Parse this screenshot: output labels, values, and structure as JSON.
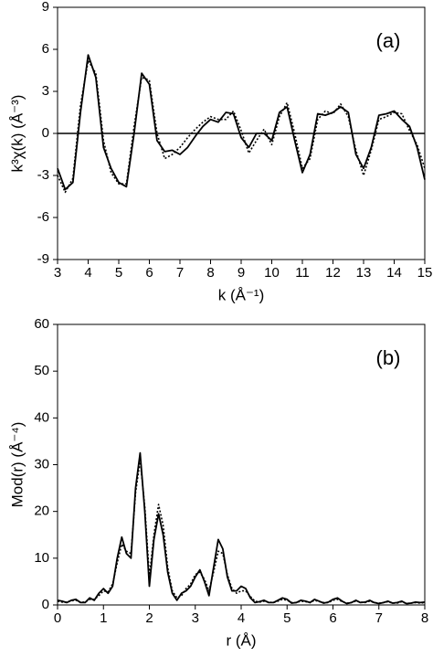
{
  "chart_data": [
    {
      "type": "line",
      "panel_label": "(a)",
      "x_label": "k (Å⁻¹)",
      "y_label": "k³χ(k) (Å⁻³)",
      "xlim": [
        3,
        15
      ],
      "xticks": [
        3,
        4,
        5,
        6,
        7,
        8,
        9,
        10,
        11,
        12,
        13,
        14,
        15
      ],
      "ylim": [
        -9,
        9
      ],
      "yticks": [
        -9,
        -6,
        -3,
        0,
        3,
        6,
        9
      ],
      "hlines": [
        0
      ],
      "x": [
        3,
        3.25,
        3.5,
        3.75,
        4,
        4.25,
        4.5,
        4.75,
        5,
        5.25,
        5.5,
        5.75,
        6,
        6.25,
        6.5,
        6.75,
        7,
        7.25,
        7.5,
        7.75,
        8,
        8.25,
        8.5,
        8.75,
        9,
        9.25,
        9.5,
        9.75,
        10,
        10.25,
        10.5,
        10.75,
        11,
        11.25,
        11.5,
        11.75,
        12,
        12.25,
        12.5,
        12.75,
        13,
        13.25,
        13.5,
        13.75,
        14,
        14.25,
        14.5,
        14.75,
        15
      ],
      "series": [
        {
          "color": "#000000",
          "style": "solid",
          "values": [
            -2.5,
            -4.0,
            -3.5,
            1.5,
            5.6,
            4.0,
            -1.0,
            -2.5,
            -3.5,
            -3.8,
            0.0,
            4.3,
            3.5,
            -0.5,
            -1.3,
            -1.2,
            -1.5,
            -1.0,
            -0.2,
            0.5,
            1.0,
            0.8,
            1.5,
            1.4,
            -0.3,
            -1.0,
            0.0,
            0.0,
            -0.5,
            1.5,
            1.9,
            -0.5,
            -2.8,
            -1.5,
            1.4,
            1.3,
            1.5,
            1.9,
            1.5,
            -1.5,
            -2.5,
            -1.0,
            1.3,
            1.4,
            1.6,
            1.0,
            0.5,
            -1.0,
            -3.3
          ]
        },
        {
          "color": "#000000",
          "style": "dotted",
          "values": [
            -3.0,
            -4.2,
            -3.2,
            2.0,
            5.2,
            4.3,
            -0.5,
            -2.8,
            -3.6,
            -3.6,
            0.5,
            4.0,
            3.8,
            0.0,
            -1.8,
            -1.5,
            -1.0,
            -0.3,
            0.3,
            0.8,
            1.2,
            1.0,
            1.0,
            1.6,
            0.2,
            -1.4,
            -0.5,
            0.3,
            -0.8,
            1.2,
            2.2,
            0.0,
            -2.5,
            -1.8,
            1.0,
            1.6,
            1.4,
            2.1,
            1.2,
            -1.2,
            -3.0,
            -1.2,
            1.0,
            1.2,
            1.5,
            1.4,
            0.2,
            -0.8,
            -2.5
          ]
        }
      ]
    },
    {
      "type": "line",
      "panel_label": "(b)",
      "x_label": "r (Å)",
      "y_label": "Mod(r) (Å⁻⁴)",
      "xlim": [
        0,
        8
      ],
      "xticks": [
        0,
        1,
        2,
        3,
        4,
        5,
        6,
        7,
        8
      ],
      "ylim": [
        0,
        60
      ],
      "yticks": [
        0,
        10,
        20,
        30,
        40,
        50,
        60
      ],
      "x": [
        0,
        0.1,
        0.2,
        0.3,
        0.4,
        0.5,
        0.6,
        0.7,
        0.8,
        0.9,
        1,
        1.1,
        1.2,
        1.3,
        1.4,
        1.5,
        1.6,
        1.7,
        1.8,
        1.9,
        2,
        2.1,
        2.2,
        2.3,
        2.4,
        2.5,
        2.6,
        2.7,
        2.8,
        2.9,
        3,
        3.1,
        3.2,
        3.3,
        3.4,
        3.5,
        3.6,
        3.7,
        3.8,
        3.9,
        4,
        4.1,
        4.2,
        4.3,
        4.4,
        4.5,
        4.6,
        4.7,
        4.8,
        4.9,
        5,
        5.1,
        5.2,
        5.3,
        5.4,
        5.5,
        5.6,
        5.7,
        5.8,
        5.9,
        6,
        6.1,
        6.2,
        6.3,
        6.4,
        6.5,
        6.6,
        6.7,
        6.8,
        6.9,
        7,
        7.1,
        7.2,
        7.3,
        7.4,
        7.5,
        7.6,
        7.7,
        7.8,
        7.9,
        8
      ],
      "series": [
        {
          "color": "#000000",
          "style": "solid",
          "values": [
            1,
            0.8,
            0.5,
            1,
            1.2,
            0.5,
            0.5,
            1.5,
            1,
            2.5,
            3.5,
            2.5,
            4,
            10,
            14.5,
            11,
            10,
            25,
            32.5,
            20,
            4,
            14,
            19.5,
            15,
            7,
            2.5,
            1,
            2.5,
            3,
            4,
            6,
            7.5,
            5,
            2,
            8,
            14,
            12,
            6,
            3,
            3,
            4,
            3.5,
            1.5,
            0.5,
            0.7,
            1,
            0.5,
            0.5,
            1,
            1.5,
            1.2,
            0.4,
            0.5,
            1,
            0.8,
            0.5,
            1.2,
            0.8,
            0.4,
            0.6,
            1.2,
            1.5,
            0.8,
            0.3,
            0.5,
            1,
            0.5,
            0.6,
            1,
            0.5,
            0.3,
            0.5,
            0.8,
            0.4,
            0.5,
            0.8,
            0.3,
            0.4,
            0.6,
            0.5,
            0.6
          ]
        },
        {
          "color": "#000000",
          "style": "dotted",
          "values": [
            0.8,
            0.6,
            0.6,
            0.9,
            1,
            0.6,
            0.6,
            1.2,
            1.2,
            2,
            3,
            2.8,
            4.5,
            9,
            13,
            11.5,
            11,
            24,
            31,
            21,
            6,
            15,
            21.5,
            17,
            8,
            3,
            1.5,
            2,
            3.5,
            4.5,
            6.5,
            7,
            5.5,
            3,
            7,
            11.5,
            11,
            6.5,
            3.5,
            2.5,
            3,
            3,
            1.8,
            0.8,
            0.6,
            0.8,
            0.6,
            0.5,
            0.8,
            1.2,
            1,
            0.5,
            0.5,
            0.8,
            0.7,
            0.5,
            1,
            0.7,
            0.5,
            0.5,
            1,
            1.2,
            0.7,
            0.4,
            0.5,
            0.8,
            0.6,
            0.5,
            0.8,
            0.5,
            0.4,
            0.5,
            0.7,
            0.4,
            0.4,
            0.7,
            0.3,
            0.4,
            0.5,
            0.4,
            0.5
          ]
        }
      ]
    }
  ]
}
